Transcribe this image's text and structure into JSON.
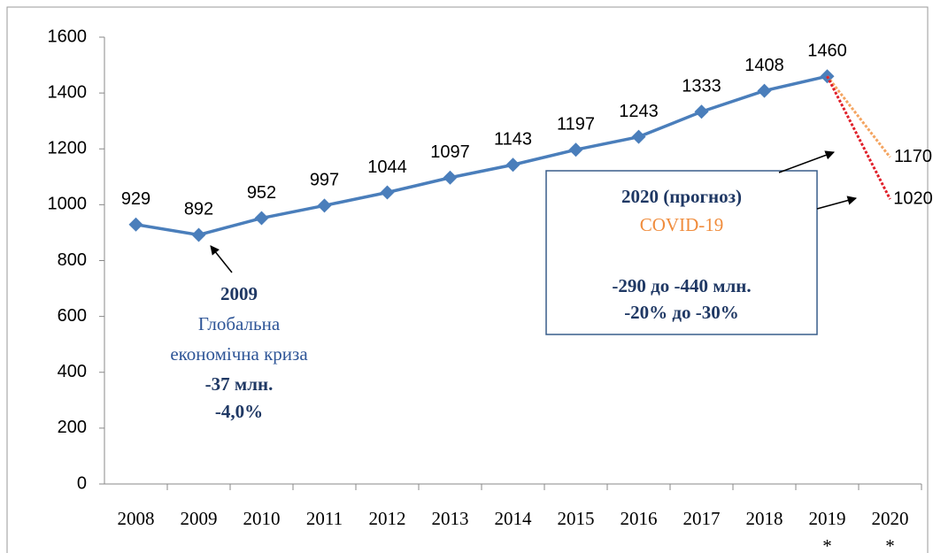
{
  "chart_data": {
    "type": "line",
    "categories": [
      "2008",
      "2009",
      "2010",
      "2011",
      "2012",
      "2013",
      "2014",
      "2015",
      "2016",
      "2017",
      "2018",
      "2019",
      "2020"
    ],
    "category_notes": [
      null,
      null,
      null,
      null,
      null,
      null,
      null,
      null,
      null,
      null,
      null,
      "*",
      "*"
    ],
    "series": [
      {
        "name": null,
        "color": "#4a7ebb",
        "dash": false,
        "values": [
          929,
          892,
          952,
          997,
          1044,
          1097,
          1143,
          1197,
          1243,
          1333,
          1408,
          1460,
          null
        ]
      },
      {
        "name": null,
        "color": "#f4a460",
        "dash": true,
        "values": [
          null,
          null,
          null,
          null,
          null,
          null,
          null,
          null,
          null,
          null,
          null,
          1460,
          1170
        ]
      },
      {
        "name": null,
        "color": "#e0202a",
        "dash": true,
        "values": [
          null,
          null,
          null,
          null,
          null,
          null,
          null,
          null,
          null,
          null,
          null,
          1460,
          1020
        ]
      }
    ],
    "ylim": [
      0,
      1600
    ],
    "yticks": [
      0,
      200,
      400,
      600,
      800,
      1000,
      1200,
      1400,
      1600
    ],
    "annotations": [
      {
        "lines": [
          "2009",
          "Глобальна",
          "економічна криза",
          "-37 млн.",
          "-4,0%"
        ]
      },
      {
        "lines": [
          "2020 (прогноз)",
          "COVID-19",
          "-290 до -440 млн.",
          "-20% до -30%"
        ]
      }
    ]
  }
}
